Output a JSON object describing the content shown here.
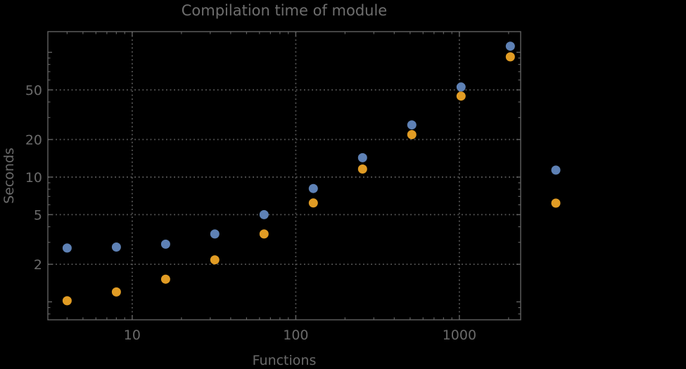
{
  "chart_data": {
    "type": "scatter",
    "title": "Compilation time of module",
    "background_color": "#000000",
    "text_color": "#6a6a6a",
    "frame_color": "#616161",
    "grid_color": "#575757",
    "grid_style": "dotted",
    "x_axis": {
      "label": "Functions",
      "scale": "log",
      "range": [
        3.05,
        2370
      ],
      "labeled_ticks": [
        10,
        100,
        1000
      ],
      "tick_labels": [
        "10",
        "100",
        "1000"
      ],
      "unlabeled_major_ticks": [],
      "gridlines": [
        10,
        100,
        1000
      ]
    },
    "y_axis": {
      "label": "Seconds",
      "scale": "log",
      "range": [
        0.718,
        146.5
      ],
      "labeled_ticks": [
        2,
        5,
        10,
        20,
        50
      ],
      "tick_labels": [
        "2",
        "5",
        "10",
        "20",
        "50"
      ],
      "unlabeled_major_ticks": [
        1,
        100
      ],
      "gridlines": [
        2,
        5,
        10,
        20,
        50
      ]
    },
    "x_values": [
      4,
      8,
      16,
      32,
      64,
      128,
      256,
      512,
      1024,
      2048
    ],
    "series": [
      {
        "name": "series-1-blue",
        "color": "#5E81B5",
        "values": [
          2.7,
          2.75,
          2.9,
          3.5,
          5.0,
          8.1,
          14.3,
          26.2,
          52.7,
          112
        ]
      },
      {
        "name": "series-2-orange",
        "color": "#E19C24",
        "values": [
          1.02,
          1.2,
          1.52,
          2.17,
          3.5,
          6.2,
          11.6,
          21.9,
          44.6,
          92
        ]
      }
    ],
    "marker": {
      "shape": "circle",
      "radius": 6.5
    },
    "legend": {
      "position": "right-outside",
      "labels_visible": false,
      "markers": [
        {
          "series": "series-1-blue",
          "color": "#5E81B5"
        },
        {
          "series": "series-2-orange",
          "color": "#E19C24"
        }
      ]
    }
  }
}
